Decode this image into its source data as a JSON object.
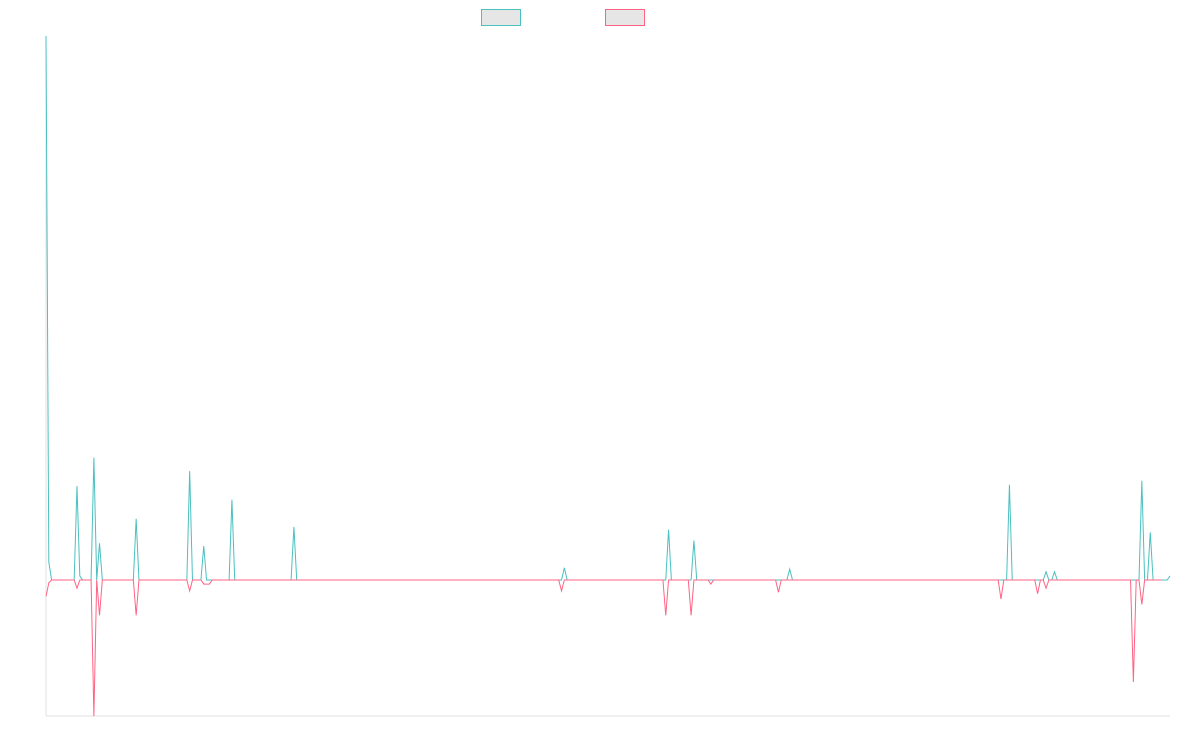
{
  "chart_data": {
    "type": "line",
    "title": "",
    "xlabel": "",
    "ylabel": "",
    "grid": false,
    "legend_position": "top-center",
    "ylim": [
      -1000,
      4000
    ],
    "series": [
      {
        "color": "#4bc0c0",
        "fill": "#e6e6e6",
        "values": [
          4000,
          130,
          0,
          0,
          0,
          0,
          0,
          0,
          0,
          0,
          0,
          690,
          30,
          0,
          0,
          0,
          0,
          900,
          0,
          270,
          0,
          0,
          0,
          0,
          0,
          0,
          0,
          0,
          0,
          0,
          0,
          0,
          450,
          0,
          0,
          0,
          0,
          0,
          0,
          0,
          0,
          0,
          0,
          0,
          0,
          0,
          0,
          0,
          0,
          0,
          0,
          800,
          0,
          0,
          0,
          0,
          250,
          0,
          0,
          0,
          0,
          0,
          0,
          0,
          0,
          0,
          590,
          0,
          0,
          0,
          0,
          0,
          0,
          0,
          0,
          0,
          0,
          0,
          0,
          0,
          0,
          0,
          0,
          0,
          0,
          0,
          0,
          0,
          390,
          0,
          0,
          0,
          0,
          0,
          0,
          0,
          0,
          0,
          0,
          0,
          0,
          0,
          0,
          0,
          0,
          0,
          0,
          0,
          0,
          0,
          0,
          0,
          0,
          0,
          0,
          0,
          0,
          0,
          0,
          0,
          0,
          0,
          0,
          0,
          0,
          0,
          0,
          0,
          0,
          0,
          0,
          0,
          0,
          0,
          0,
          0,
          0,
          0,
          0,
          0,
          0,
          0,
          0,
          0,
          0,
          0,
          0,
          0,
          0,
          0,
          0,
          0,
          0,
          0,
          0,
          0,
          0,
          0,
          0,
          0,
          0,
          0,
          0,
          0,
          0,
          0,
          0,
          0,
          0,
          0,
          0,
          0,
          0,
          0,
          0,
          0,
          0,
          0,
          0,
          0,
          0,
          0,
          0,
          0,
          90,
          0,
          0,
          0,
          0,
          0,
          0,
          0,
          0,
          0,
          0,
          0,
          0,
          0,
          0,
          0,
          0,
          0,
          0,
          0,
          0,
          0,
          0,
          0,
          0,
          0,
          0,
          0,
          0,
          0,
          0,
          0,
          0,
          0,
          0,
          0,
          0,
          370,
          0,
          0,
          0,
          0,
          0,
          0,
          0,
          0,
          290,
          0,
          0,
          0,
          0,
          0,
          0,
          0,
          0,
          0,
          0,
          0,
          0,
          0,
          0,
          0,
          0,
          0,
          0,
          0,
          0,
          0,
          0,
          0,
          0,
          0,
          0,
          0,
          0,
          0,
          0,
          0,
          0,
          0,
          80,
          0,
          0,
          0,
          0,
          0,
          0,
          0,
          0,
          0,
          0,
          0,
          0,
          0,
          0,
          0,
          0,
          0,
          0,
          0,
          0,
          0,
          0,
          0,
          0,
          0,
          0,
          0,
          0,
          0,
          0,
          0,
          0,
          0,
          0,
          0,
          0,
          0,
          0,
          0,
          0,
          0,
          0,
          0,
          0,
          0,
          0,
          0,
          0,
          0,
          0,
          0,
          0,
          0,
          0,
          0,
          0,
          0,
          0,
          0,
          0,
          0,
          0,
          0,
          0,
          0,
          0,
          0,
          0,
          0,
          0,
          0,
          0,
          0,
          0,
          0,
          0,
          0,
          700,
          0,
          0,
          0,
          0,
          0,
          0,
          0,
          0,
          0,
          0,
          0,
          0,
          60,
          0,
          0,
          60,
          0,
          0,
          0,
          0,
          0,
          0,
          0,
          0,
          0,
          0,
          0,
          0,
          0,
          0,
          0,
          0,
          0,
          0,
          0,
          0,
          0,
          0,
          0,
          0,
          0,
          0,
          0,
          0,
          0,
          0,
          730,
          0,
          0,
          350,
          0,
          0,
          0,
          0,
          0,
          0,
          30
        ]
      },
      {
        "color": "#ff6384",
        "fill": "#e6e6e6",
        "values": [
          -120,
          -20,
          0,
          0,
          0,
          0,
          0,
          0,
          0,
          0,
          0,
          -60,
          0,
          0,
          0,
          0,
          0,
          -1000,
          0,
          -260,
          0,
          0,
          0,
          0,
          0,
          0,
          0,
          0,
          0,
          0,
          0,
          0,
          -260,
          0,
          0,
          0,
          0,
          0,
          0,
          0,
          0,
          0,
          0,
          0,
          0,
          0,
          0,
          0,
          0,
          0,
          0,
          -80,
          0,
          0,
          0,
          0,
          -30,
          -30,
          -30,
          0,
          0,
          0,
          0,
          0,
          0,
          0,
          0,
          0,
          0,
          0,
          0,
          0,
          0,
          0,
          0,
          0,
          0,
          0,
          0,
          0,
          0,
          0,
          0,
          0,
          0,
          0,
          0,
          0,
          0,
          0,
          0,
          0,
          0,
          0,
          0,
          0,
          0,
          0,
          0,
          0,
          0,
          0,
          0,
          0,
          0,
          0,
          0,
          0,
          0,
          0,
          0,
          0,
          0,
          0,
          0,
          0,
          0,
          0,
          0,
          0,
          0,
          0,
          0,
          0,
          0,
          0,
          0,
          0,
          0,
          0,
          0,
          0,
          0,
          0,
          0,
          0,
          0,
          0,
          0,
          0,
          0,
          0,
          0,
          0,
          0,
          0,
          0,
          0,
          0,
          0,
          0,
          0,
          0,
          0,
          0,
          0,
          0,
          0,
          0,
          0,
          0,
          0,
          0,
          0,
          0,
          0,
          0,
          0,
          0,
          0,
          0,
          0,
          0,
          0,
          0,
          0,
          0,
          0,
          0,
          0,
          0,
          0,
          0,
          -80,
          0,
          0,
          0,
          0,
          0,
          0,
          0,
          0,
          0,
          0,
          0,
          0,
          0,
          0,
          0,
          0,
          0,
          0,
          0,
          0,
          0,
          0,
          0,
          0,
          0,
          0,
          0,
          0,
          0,
          0,
          0,
          0,
          0,
          0,
          0,
          0,
          -260,
          0,
          0,
          0,
          0,
          0,
          0,
          0,
          0,
          -260,
          0,
          0,
          0,
          0,
          0,
          0,
          -30,
          0,
          0,
          0,
          0,
          0,
          0,
          0,
          0,
          0,
          0,
          0,
          0,
          0,
          0,
          0,
          0,
          0,
          0,
          0,
          0,
          0,
          0,
          0,
          -90,
          0,
          0,
          0,
          0,
          0,
          0,
          0,
          0,
          0,
          0,
          0,
          0,
          0,
          0,
          0,
          0,
          0,
          0,
          0,
          0,
          0,
          0,
          0,
          0,
          0,
          0,
          0,
          0,
          0,
          0,
          0,
          0,
          0,
          0,
          0,
          0,
          0,
          0,
          0,
          0,
          0,
          0,
          0,
          0,
          0,
          0,
          0,
          0,
          0,
          0,
          0,
          0,
          0,
          0,
          0,
          0,
          0,
          0,
          0,
          0,
          0,
          0,
          0,
          0,
          0,
          0,
          0,
          0,
          0,
          0,
          0,
          0,
          0,
          0,
          0,
          0,
          0,
          0,
          -140,
          0,
          0,
          0,
          0,
          0,
          0,
          0,
          0,
          0,
          0,
          0,
          0,
          -100,
          0,
          0,
          -60,
          0,
          0,
          0,
          0,
          0,
          0,
          0,
          0,
          0,
          0,
          0,
          0,
          0,
          0,
          0,
          0,
          0,
          0,
          0,
          0,
          0,
          0,
          0,
          0,
          0,
          0,
          0,
          0,
          0,
          0,
          -750,
          0,
          0,
          -180,
          0,
          0,
          0,
          0,
          0,
          0,
          0
        ]
      }
    ]
  }
}
